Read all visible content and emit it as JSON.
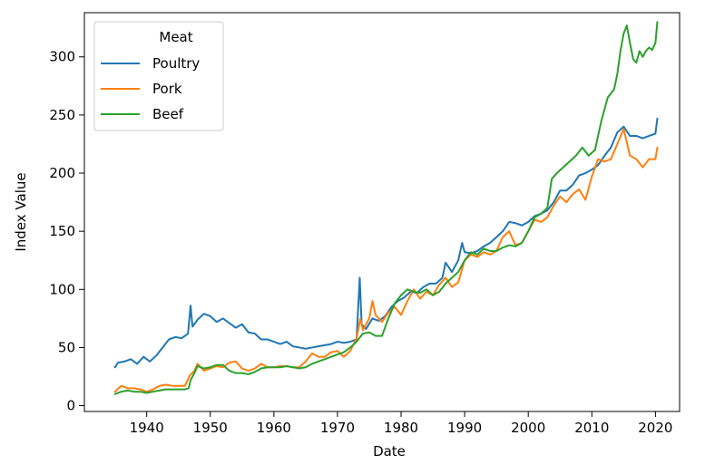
{
  "chart_data": {
    "type": "line",
    "xlabel": "Date",
    "ylabel": "Index Value",
    "xlim": [
      1930.2,
      2023.8
    ],
    "ylim": [
      -5,
      338
    ],
    "xticks": [
      1940,
      1950,
      1960,
      1970,
      1980,
      1990,
      2000,
      2010,
      2020
    ],
    "yticks": [
      0,
      50,
      100,
      150,
      200,
      250,
      300
    ],
    "grid": false,
    "legend": {
      "title": "Meat",
      "placement": "top-left"
    },
    "series": [
      {
        "name": "Poultry",
        "color": "#1f77b4",
        "points": [
          [
            1935.0,
            33
          ],
          [
            1935.5,
            37
          ],
          [
            1936.5,
            38
          ],
          [
            1937.5,
            40
          ],
          [
            1938.5,
            36
          ],
          [
            1939.5,
            42
          ],
          [
            1940.5,
            38
          ],
          [
            1941.5,
            43
          ],
          [
            1942.5,
            50
          ],
          [
            1943.5,
            57
          ],
          [
            1944.5,
            59
          ],
          [
            1945.5,
            58
          ],
          [
            1946.5,
            62
          ],
          [
            1946.9,
            86
          ],
          [
            1947.2,
            68
          ],
          [
            1948.0,
            74
          ],
          [
            1949.0,
            79
          ],
          [
            1950.0,
            77
          ],
          [
            1951.0,
            72
          ],
          [
            1952.0,
            75
          ],
          [
            1953.0,
            71
          ],
          [
            1954.0,
            67
          ],
          [
            1955.0,
            70
          ],
          [
            1956.0,
            63
          ],
          [
            1957.0,
            62
          ],
          [
            1958.0,
            57
          ],
          [
            1959.0,
            57
          ],
          [
            1960.0,
            55
          ],
          [
            1961.0,
            53
          ],
          [
            1962.0,
            55
          ],
          [
            1963.0,
            51
          ],
          [
            1964.0,
            50
          ],
          [
            1965.0,
            49
          ],
          [
            1966.0,
            50
          ],
          [
            1967.0,
            51
          ],
          [
            1968.0,
            52
          ],
          [
            1969.0,
            53
          ],
          [
            1970.0,
            55
          ],
          [
            1971.0,
            54
          ],
          [
            1972.0,
            55
          ],
          [
            1973.0,
            57
          ],
          [
            1973.5,
            110
          ],
          [
            1973.8,
            70
          ],
          [
            1974.5,
            66
          ],
          [
            1975.5,
            75
          ],
          [
            1976.5,
            73
          ],
          [
            1977.5,
            77
          ],
          [
            1978.5,
            85
          ],
          [
            1979.5,
            90
          ],
          [
            1980.5,
            93
          ],
          [
            1981.5,
            98
          ],
          [
            1982.5,
            97
          ],
          [
            1983.5,
            102
          ],
          [
            1984.5,
            105
          ],
          [
            1985.5,
            105
          ],
          [
            1986.5,
            110
          ],
          [
            1987.0,
            123
          ],
          [
            1988.0,
            115
          ],
          [
            1989.0,
            125
          ],
          [
            1989.6,
            140
          ],
          [
            1990.0,
            132
          ],
          [
            1991.0,
            131
          ],
          [
            1992.0,
            133
          ],
          [
            1993.0,
            137
          ],
          [
            1994.0,
            140
          ],
          [
            1995.0,
            145
          ],
          [
            1996.0,
            150
          ],
          [
            1997.0,
            158
          ],
          [
            1998.0,
            157
          ],
          [
            1999.0,
            155
          ],
          [
            2000.0,
            158
          ],
          [
            2001.0,
            163
          ],
          [
            2002.0,
            165
          ],
          [
            2003.0,
            168
          ],
          [
            2004.0,
            175
          ],
          [
            2005.0,
            185
          ],
          [
            2006.0,
            185
          ],
          [
            2007.0,
            190
          ],
          [
            2008.0,
            198
          ],
          [
            2009.0,
            200
          ],
          [
            2010.0,
            203
          ],
          [
            2011.0,
            207
          ],
          [
            2012.0,
            215
          ],
          [
            2013.0,
            222
          ],
          [
            2014.0,
            235
          ],
          [
            2015.0,
            240
          ],
          [
            2016.0,
            232
          ],
          [
            2017.0,
            232
          ],
          [
            2018.0,
            230
          ],
          [
            2019.0,
            232
          ],
          [
            2020.0,
            234
          ],
          [
            2020.3,
            247
          ]
        ]
      },
      {
        "name": "Pork",
        "color": "#ff7f0e",
        "points": [
          [
            1935.0,
            12
          ],
          [
            1936.0,
            17
          ],
          [
            1937.0,
            15
          ],
          [
            1938.0,
            15
          ],
          [
            1939.0,
            14
          ],
          [
            1940.0,
            12
          ],
          [
            1941.0,
            14
          ],
          [
            1942.0,
            17
          ],
          [
            1943.0,
            18
          ],
          [
            1944.0,
            17
          ],
          [
            1945.0,
            17
          ],
          [
            1946.0,
            17
          ],
          [
            1946.8,
            26
          ],
          [
            1947.5,
            30
          ],
          [
            1948.0,
            36
          ],
          [
            1949.0,
            30
          ],
          [
            1950.0,
            32
          ],
          [
            1951.0,
            34
          ],
          [
            1952.0,
            33
          ],
          [
            1953.0,
            37
          ],
          [
            1954.0,
            38
          ],
          [
            1955.0,
            32
          ],
          [
            1956.0,
            30
          ],
          [
            1957.0,
            32
          ],
          [
            1958.0,
            36
          ],
          [
            1959.0,
            33
          ],
          [
            1960.0,
            33
          ],
          [
            1961.0,
            34
          ],
          [
            1962.0,
            34
          ],
          [
            1963.0,
            33
          ],
          [
            1964.0,
            33
          ],
          [
            1965.0,
            38
          ],
          [
            1966.0,
            45
          ],
          [
            1967.0,
            42
          ],
          [
            1968.0,
            42
          ],
          [
            1969.0,
            46
          ],
          [
            1970.0,
            47
          ],
          [
            1971.0,
            42
          ],
          [
            1972.0,
            47
          ],
          [
            1973.0,
            58
          ],
          [
            1973.6,
            75
          ],
          [
            1974.0,
            65
          ],
          [
            1974.5,
            70
          ],
          [
            1975.0,
            75
          ],
          [
            1975.5,
            90
          ],
          [
            1976.0,
            78
          ],
          [
            1977.0,
            72
          ],
          [
            1978.0,
            80
          ],
          [
            1979.0,
            85
          ],
          [
            1980.0,
            78
          ],
          [
            1981.0,
            90
          ],
          [
            1982.0,
            100
          ],
          [
            1983.0,
            92
          ],
          [
            1984.0,
            98
          ],
          [
            1985.0,
            95
          ],
          [
            1986.0,
            104
          ],
          [
            1987.0,
            110
          ],
          [
            1988.0,
            102
          ],
          [
            1989.0,
            106
          ],
          [
            1990.0,
            125
          ],
          [
            1991.0,
            130
          ],
          [
            1992.0,
            128
          ],
          [
            1993.0,
            132
          ],
          [
            1994.0,
            130
          ],
          [
            1995.0,
            133
          ],
          [
            1996.0,
            145
          ],
          [
            1997.0,
            150
          ],
          [
            1998.0,
            138
          ],
          [
            1999.0,
            140
          ],
          [
            2000.0,
            150
          ],
          [
            2001.0,
            160
          ],
          [
            2002.0,
            158
          ],
          [
            2003.0,
            162
          ],
          [
            2004.0,
            172
          ],
          [
            2005.0,
            180
          ],
          [
            2006.0,
            175
          ],
          [
            2007.0,
            182
          ],
          [
            2008.0,
            186
          ],
          [
            2009.0,
            177
          ],
          [
            2010.0,
            197
          ],
          [
            2011.0,
            212
          ],
          [
            2012.0,
            210
          ],
          [
            2013.0,
            212
          ],
          [
            2014.0,
            225
          ],
          [
            2015.0,
            238
          ],
          [
            2016.0,
            215
          ],
          [
            2017.0,
            212
          ],
          [
            2018.0,
            205
          ],
          [
            2019.0,
            212
          ],
          [
            2020.0,
            212
          ],
          [
            2020.3,
            222
          ]
        ]
      },
      {
        "name": "Beef",
        "color": "#2ca02c",
        "points": [
          [
            1935.0,
            10
          ],
          [
            1936.0,
            12
          ],
          [
            1937.0,
            13
          ],
          [
            1938.0,
            12
          ],
          [
            1939.0,
            12
          ],
          [
            1940.0,
            11
          ],
          [
            1941.0,
            12
          ],
          [
            1942.0,
            13
          ],
          [
            1943.0,
            14
          ],
          [
            1944.0,
            14
          ],
          [
            1945.0,
            14
          ],
          [
            1946.0,
            14
          ],
          [
            1946.6,
            15
          ],
          [
            1946.9,
            22
          ],
          [
            1947.5,
            28
          ],
          [
            1948.0,
            34
          ],
          [
            1949.0,
            32
          ],
          [
            1950.0,
            33
          ],
          [
            1951.0,
            35
          ],
          [
            1952.0,
            35
          ],
          [
            1953.0,
            30
          ],
          [
            1954.0,
            28
          ],
          [
            1955.0,
            28
          ],
          [
            1956.0,
            27
          ],
          [
            1957.0,
            29
          ],
          [
            1958.0,
            32
          ],
          [
            1959.0,
            33
          ],
          [
            1960.0,
            33
          ],
          [
            1961.0,
            33
          ],
          [
            1962.0,
            34
          ],
          [
            1963.0,
            33
          ],
          [
            1964.0,
            32
          ],
          [
            1965.0,
            33
          ],
          [
            1966.0,
            36
          ],
          [
            1967.0,
            38
          ],
          [
            1968.0,
            40
          ],
          [
            1969.0,
            42
          ],
          [
            1970.0,
            44
          ],
          [
            1971.0,
            46
          ],
          [
            1972.0,
            50
          ],
          [
            1973.0,
            55
          ],
          [
            1974.0,
            62
          ],
          [
            1975.0,
            63
          ],
          [
            1976.0,
            60
          ],
          [
            1977.0,
            60
          ],
          [
            1978.0,
            75
          ],
          [
            1979.0,
            88
          ],
          [
            1980.0,
            95
          ],
          [
            1981.0,
            100
          ],
          [
            1982.0,
            98
          ],
          [
            1983.0,
            97
          ],
          [
            1984.0,
            100
          ],
          [
            1985.0,
            95
          ],
          [
            1986.0,
            98
          ],
          [
            1987.0,
            105
          ],
          [
            1988.0,
            110
          ],
          [
            1989.0,
            115
          ],
          [
            1990.0,
            125
          ],
          [
            1991.0,
            132
          ],
          [
            1992.0,
            130
          ],
          [
            1993.0,
            135
          ],
          [
            1994.0,
            133
          ],
          [
            1995.0,
            133
          ],
          [
            1996.0,
            136
          ],
          [
            1997.0,
            138
          ],
          [
            1998.0,
            137
          ],
          [
            1999.0,
            140
          ],
          [
            2000.0,
            150
          ],
          [
            2001.0,
            162
          ],
          [
            2002.0,
            165
          ],
          [
            2003.0,
            170
          ],
          [
            2003.7,
            195
          ],
          [
            2004.5,
            200
          ],
          [
            2005.5,
            205
          ],
          [
            2006.5,
            210
          ],
          [
            2007.5,
            215
          ],
          [
            2008.5,
            222
          ],
          [
            2009.5,
            215
          ],
          [
            2010.5,
            220
          ],
          [
            2011.5,
            245
          ],
          [
            2012.5,
            265
          ],
          [
            2013.5,
            272
          ],
          [
            2014.0,
            285
          ],
          [
            2014.5,
            305
          ],
          [
            2015.0,
            320
          ],
          [
            2015.5,
            327
          ],
          [
            2016.0,
            312
          ],
          [
            2016.5,
            298
          ],
          [
            2017.0,
            295
          ],
          [
            2017.5,
            305
          ],
          [
            2018.0,
            300
          ],
          [
            2018.5,
            305
          ],
          [
            2019.0,
            308
          ],
          [
            2019.5,
            306
          ],
          [
            2020.0,
            312
          ],
          [
            2020.3,
            330
          ]
        ]
      }
    ]
  }
}
